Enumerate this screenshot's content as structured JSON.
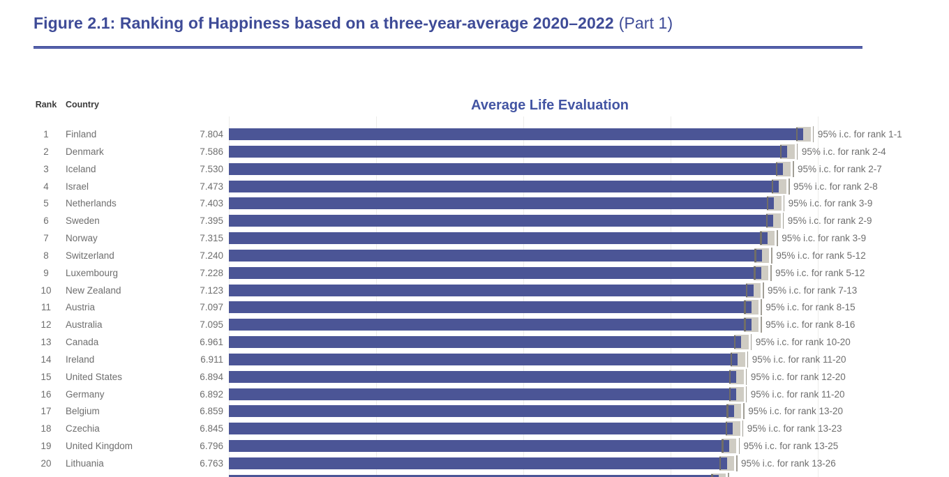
{
  "figure": {
    "title_bold": "Figure 2.1: Ranking of Happiness based on a three-year-average 2020–2022",
    "title_part": "(Part 1)"
  },
  "table": {
    "rank_header": "Rank",
    "country_header": "Country"
  },
  "colors": {
    "title_navy": "#3e4b97",
    "rule_blue": "#5561ab",
    "axis_title_blue": "#4355a3",
    "bar_blue": "#4b5596",
    "ci_band_gray": "#cfccc3",
    "ci_tick_dark": "#716e67",
    "ci_whisker_gray": "#a19e95",
    "row_text_gray": "#6e6e6e",
    "header_text_dark": "#3b3b3b",
    "gridline_gray": "#ececea"
  },
  "chart_data": {
    "type": "bar",
    "title": "Average Life Evaluation",
    "xlabel": "",
    "ylabel": "",
    "xlim": [
      0,
      8
    ],
    "gridline_x_values": [
      0,
      2,
      4,
      6,
      8
    ],
    "grid": true,
    "legend": "none",
    "ci_halfwidth_estimate": 0.1,
    "rows": [
      {
        "rank": "1",
        "country": "Finland",
        "value": 7.804,
        "value_label": "7.804",
        "ci_label": "95% i.c. for rank 1-1"
      },
      {
        "rank": "2",
        "country": "Denmark",
        "value": 7.586,
        "value_label": "7.586",
        "ci_label": "95% i.c. for rank 2-4"
      },
      {
        "rank": "3",
        "country": "Iceland",
        "value": 7.53,
        "value_label": "7.530",
        "ci_label": "95% i.c. for rank 2-7"
      },
      {
        "rank": "4",
        "country": "Israel",
        "value": 7.473,
        "value_label": "7.473",
        "ci_label": "95% i.c. for rank 2-8"
      },
      {
        "rank": "5",
        "country": "Netherlands",
        "value": 7.403,
        "value_label": "7.403",
        "ci_label": "95% i.c. for rank 3-9"
      },
      {
        "rank": "6",
        "country": "Sweden",
        "value": 7.395,
        "value_label": "7.395",
        "ci_label": "95% i.c. for rank 2-9"
      },
      {
        "rank": "7",
        "country": "Norway",
        "value": 7.315,
        "value_label": "7.315",
        "ci_label": "95% i.c. for rank 3-9"
      },
      {
        "rank": "8",
        "country": "Switzerland",
        "value": 7.24,
        "value_label": "7.240",
        "ci_label": "95% i.c. for rank 5-12"
      },
      {
        "rank": "9",
        "country": "Luxembourg",
        "value": 7.228,
        "value_label": "7.228",
        "ci_label": "95% i.c. for rank 5-12"
      },
      {
        "rank": "10",
        "country": "New Zealand",
        "value": 7.123,
        "value_label": "7.123",
        "ci_label": "95% i.c. for rank 7-13"
      },
      {
        "rank": "11",
        "country": "Austria",
        "value": 7.097,
        "value_label": "7.097",
        "ci_label": "95% i.c. for rank 8-15"
      },
      {
        "rank": "12",
        "country": "Australia",
        "value": 7.095,
        "value_label": "7.095",
        "ci_label": "95% i.c. for rank 8-16"
      },
      {
        "rank": "13",
        "country": "Canada",
        "value": 6.961,
        "value_label": "6.961",
        "ci_label": "95% i.c. for rank 10-20"
      },
      {
        "rank": "14",
        "country": "Ireland",
        "value": 6.911,
        "value_label": "6.911",
        "ci_label": "95% i.c. for rank 11-20"
      },
      {
        "rank": "15",
        "country": "United States",
        "value": 6.894,
        "value_label": "6.894",
        "ci_label": "95% i.c. for rank 12-20"
      },
      {
        "rank": "16",
        "country": "Germany",
        "value": 6.892,
        "value_label": "6.892",
        "ci_label": "95% i.c. for rank 11-20"
      },
      {
        "rank": "17",
        "country": "Belgium",
        "value": 6.859,
        "value_label": "6.859",
        "ci_label": "95% i.c. for rank 13-20"
      },
      {
        "rank": "18",
        "country": "Czechia",
        "value": 6.845,
        "value_label": "6.845",
        "ci_label": "95% i.c. for rank 13-23"
      },
      {
        "rank": "19",
        "country": "United Kingdom",
        "value": 6.796,
        "value_label": "6.796",
        "ci_label": "95% i.c. for rank 13-25"
      },
      {
        "rank": "20",
        "country": "Lithuania",
        "value": 6.763,
        "value_label": "6.763",
        "ci_label": "95% i.c. for rank 13-26"
      }
    ],
    "partial_bottom_bar": {
      "value": 6.65,
      "note": "bar of next row clipped at bottom edge, no text visible"
    }
  }
}
